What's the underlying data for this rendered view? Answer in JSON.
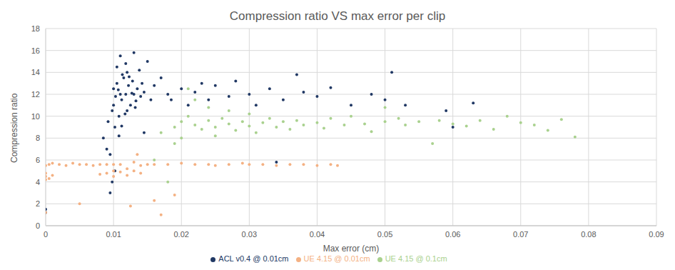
{
  "chart_data": {
    "type": "scatter",
    "title": "Compression ratio VS max error per clip",
    "x_label": "Max error (cm)",
    "y_label": "Compression ratio",
    "xlim": [
      0,
      0.09
    ],
    "xticks": [
      0,
      0.01,
      0.02,
      0.03,
      0.04,
      0.05,
      0.06,
      0.07,
      0.08,
      0.09
    ],
    "ylim": [
      0,
      18
    ],
    "yticks": [
      0,
      2,
      4,
      6,
      8,
      10,
      12,
      14,
      16,
      18
    ],
    "grid": true,
    "legend": "bottom",
    "marker": "circle",
    "series": [
      {
        "name": "ACL v0.4 @ 0.01cm",
        "color": "#203864",
        "values": [
          [
            0.0,
            1.5
          ],
          [
            0.0,
            1.2
          ],
          [
            0.0085,
            8
          ],
          [
            0.009,
            7
          ],
          [
            0.0092,
            9.5
          ],
          [
            0.0095,
            6.5
          ],
          [
            0.0098,
            10.5
          ],
          [
            0.01,
            11
          ],
          [
            0.01,
            12.5
          ],
          [
            0.0102,
            9
          ],
          [
            0.0105,
            13
          ],
          [
            0.0105,
            14.5
          ],
          [
            0.0108,
            10
          ],
          [
            0.011,
            12
          ],
          [
            0.011,
            15.5
          ],
          [
            0.0112,
            11.5
          ],
          [
            0.0115,
            13.5
          ],
          [
            0.0118,
            12
          ],
          [
            0.012,
            10.5
          ],
          [
            0.012,
            14
          ],
          [
            0.0122,
            12.8
          ],
          [
            0.0125,
            11
          ],
          [
            0.0128,
            13.2
          ],
          [
            0.013,
            12
          ],
          [
            0.013,
            15.8
          ],
          [
            0.0132,
            10.8
          ],
          [
            0.0135,
            12.5
          ],
          [
            0.0138,
            14.2
          ],
          [
            0.014,
            11.8
          ],
          [
            0.0142,
            13
          ],
          [
            0.0145,
            12.2
          ],
          [
            0.015,
            15
          ],
          [
            0.0155,
            11.5
          ],
          [
            0.016,
            12.8
          ],
          [
            0.017,
            13.5
          ],
          [
            0.018,
            12
          ],
          [
            0.0185,
            11.5
          ],
          [
            0.02,
            12.5
          ],
          [
            0.021,
            11
          ],
          [
            0.022,
            12.2
          ],
          [
            0.023,
            13
          ],
          [
            0.024,
            11.5
          ],
          [
            0.025,
            12.8
          ],
          [
            0.027,
            11.8
          ],
          [
            0.028,
            13.2
          ],
          [
            0.03,
            12
          ],
          [
            0.031,
            11
          ],
          [
            0.033,
            12.5
          ],
          [
            0.035,
            11.5
          ],
          [
            0.037,
            13.8
          ],
          [
            0.038,
            12.2
          ],
          [
            0.04,
            11.8
          ],
          [
            0.042,
            12.6
          ],
          [
            0.045,
            11
          ],
          [
            0.048,
            12
          ],
          [
            0.05,
            11.5
          ],
          [
            0.051,
            14
          ],
          [
            0.053,
            11
          ],
          [
            0.059,
            10.5
          ],
          [
            0.06,
            9
          ],
          [
            0.063,
            11.2
          ],
          [
            0.0095,
            3
          ],
          [
            0.0098,
            4
          ],
          [
            0.0102,
            5
          ],
          [
            0.034,
            5.8
          ],
          [
            0.0145,
            8.5
          ],
          [
            0.0103,
            11.8
          ],
          [
            0.0107,
            12.4
          ],
          [
            0.0113,
            13.8
          ],
          [
            0.0117,
            10.2
          ],
          [
            0.0123,
            13.6
          ],
          [
            0.0127,
            12.1
          ],
          [
            0.0133,
            11.4
          ],
          [
            0.0108,
            8.2
          ],
          [
            0.0112,
            9.1
          ],
          [
            0.0118,
            14.8
          ]
        ]
      },
      {
        "name": "UE 4.15 @ 0.01cm",
        "color": "#f4b183",
        "values": [
          [
            0,
            4.2
          ],
          [
            0,
            4.5
          ],
          [
            0,
            4.8
          ],
          [
            0,
            5.5
          ],
          [
            0.0005,
            4.3
          ],
          [
            0.0005,
            5.6
          ],
          [
            0.001,
            4.6
          ],
          [
            0.001,
            5.7
          ],
          [
            0.002,
            5.6
          ],
          [
            0.003,
            5.5
          ],
          [
            0.004,
            5.7
          ],
          [
            0.005,
            5.6
          ],
          [
            0.006,
            5.6
          ],
          [
            0.007,
            5.5
          ],
          [
            0.008,
            5.6
          ],
          [
            0.008,
            4.7
          ],
          [
            0.009,
            4.8
          ],
          [
            0.009,
            5.6
          ],
          [
            0.01,
            4.5
          ],
          [
            0.01,
            5.0
          ],
          [
            0.01,
            5.6
          ],
          [
            0.011,
            4.9
          ],
          [
            0.011,
            5.6
          ],
          [
            0.012,
            4.6
          ],
          [
            0.012,
            5.2
          ],
          [
            0.013,
            5.0
          ],
          [
            0.013,
            5.8
          ],
          [
            0.0135,
            6.5
          ],
          [
            0.014,
            5.5
          ],
          [
            0.014,
            4.8
          ],
          [
            0.015,
            5.6
          ],
          [
            0.016,
            5.6
          ],
          [
            0.017,
            1.0
          ],
          [
            0.018,
            5.6
          ],
          [
            0.019,
            2.8
          ],
          [
            0.02,
            5.7
          ],
          [
            0.022,
            5.6
          ],
          [
            0.024,
            5.6
          ],
          [
            0.025,
            5.5
          ],
          [
            0.027,
            5.6
          ],
          [
            0.029,
            5.7
          ],
          [
            0.03,
            5.6
          ],
          [
            0.032,
            5.6
          ],
          [
            0.034,
            5.5
          ],
          [
            0.036,
            5.6
          ],
          [
            0.038,
            5.6
          ],
          [
            0.04,
            5.5
          ],
          [
            0.042,
            5.6
          ],
          [
            0.043,
            5.5
          ],
          [
            0,
            1.2
          ],
          [
            0.005,
            2
          ],
          [
            0.0125,
            1.8
          ],
          [
            0.016,
            2.3
          ]
        ]
      },
      {
        "name": "UE 4.15 @ 0.1cm",
        "color": "#a9d18e",
        "values": [
          [
            0.017,
            8.5
          ],
          [
            0.018,
            4
          ],
          [
            0.019,
            9
          ],
          [
            0.019,
            7.5
          ],
          [
            0.02,
            9.5
          ],
          [
            0.02,
            8
          ],
          [
            0.021,
            10
          ],
          [
            0.022,
            9.2
          ],
          [
            0.022,
            11.5
          ],
          [
            0.023,
            8.8
          ],
          [
            0.024,
            9.6
          ],
          [
            0.024,
            10.8
          ],
          [
            0.025,
            9
          ],
          [
            0.025,
            8.2
          ],
          [
            0.026,
            9.8
          ],
          [
            0.027,
            9.3
          ],
          [
            0.027,
            10.5
          ],
          [
            0.028,
            8.7
          ],
          [
            0.029,
            9.5
          ],
          [
            0.03,
            9.1
          ],
          [
            0.03,
            10.2
          ],
          [
            0.031,
            8.5
          ],
          [
            0.032,
            9.4
          ],
          [
            0.033,
            9.8
          ],
          [
            0.034,
            9.0
          ],
          [
            0.035,
            9.5
          ],
          [
            0.036,
            8.8
          ],
          [
            0.037,
            9.6
          ],
          [
            0.038,
            9.2
          ],
          [
            0.04,
            9.4
          ],
          [
            0.041,
            8.9
          ],
          [
            0.042,
            9.8
          ],
          [
            0.044,
            9.2
          ],
          [
            0.045,
            10
          ],
          [
            0.047,
            9.3
          ],
          [
            0.048,
            8.6
          ],
          [
            0.05,
            9.5
          ],
          [
            0.052,
            9.8
          ],
          [
            0.053,
            9.2
          ],
          [
            0.055,
            9.5
          ],
          [
            0.057,
            7.5
          ],
          [
            0.058,
            9.6
          ],
          [
            0.06,
            9.3
          ],
          [
            0.062,
            9.1
          ],
          [
            0.064,
            9.6
          ],
          [
            0.066,
            8.8
          ],
          [
            0.068,
            10
          ],
          [
            0.07,
            9.4
          ],
          [
            0.072,
            9.2
          ],
          [
            0.074,
            8.7
          ],
          [
            0.076,
            9.7
          ],
          [
            0.078,
            8.1
          ],
          [
            0.016,
            6
          ],
          [
            0.021,
            12.5
          ],
          [
            0.05,
            10.8
          ]
        ]
      }
    ]
  }
}
